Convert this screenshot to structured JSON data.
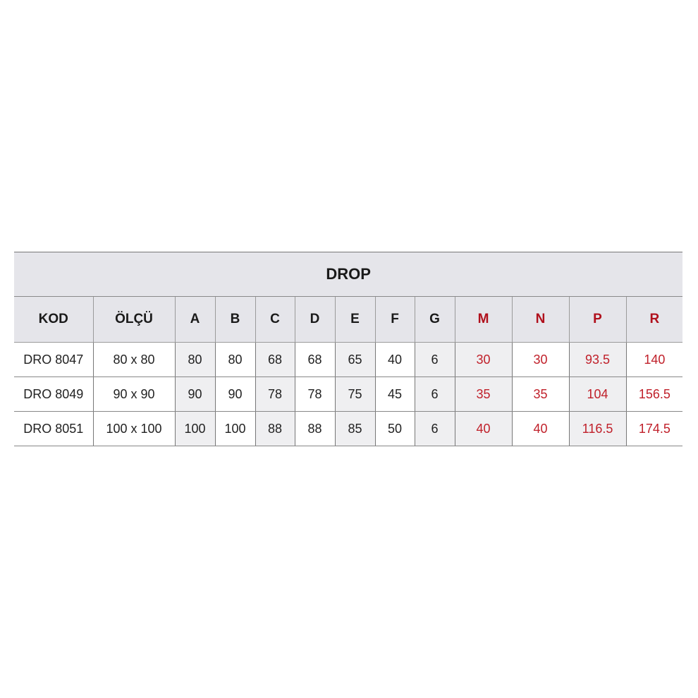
{
  "title": "DROP",
  "headers": [
    "KOD",
    "ÖLÇÜ",
    "A",
    "B",
    "C",
    "D",
    "E",
    "F",
    "G",
    "M",
    "N",
    "P",
    "R"
  ],
  "rows": [
    [
      "DRO 8047",
      "80 x 80",
      "80",
      "80",
      "68",
      "68",
      "65",
      "40",
      "6",
      "30",
      "30",
      "93.5",
      "140"
    ],
    [
      "DRO 8049",
      "90 x 90",
      "90",
      "90",
      "78",
      "78",
      "75",
      "45",
      "6",
      "35",
      "35",
      "104",
      "156.5"
    ],
    [
      "DRO 8051",
      "100 x 100",
      "100",
      "100",
      "88",
      "88",
      "85",
      "50",
      "6",
      "40",
      "40",
      "116.5",
      "174.5"
    ]
  ],
  "colors": {
    "accent_red": "#c0202a",
    "header_bg": "#e5e5ea"
  }
}
